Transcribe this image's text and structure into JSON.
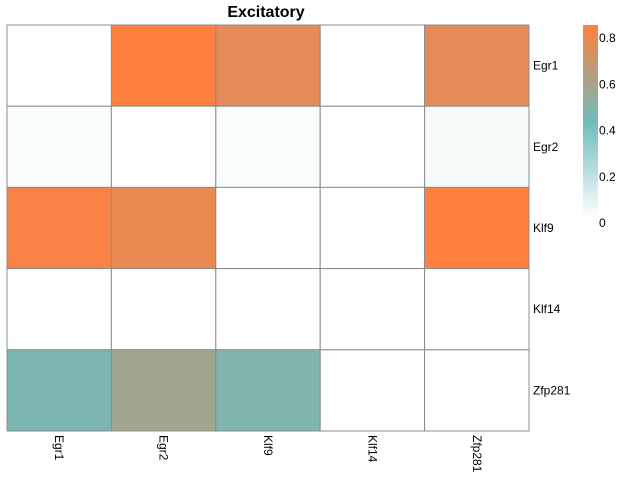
{
  "chart_data": {
    "type": "heatmap",
    "title": "Excitatory",
    "rows": [
      "Egr1",
      "Egr2",
      "Klf9",
      "Klf14",
      "Zfp281"
    ],
    "columns": [
      "Egr1",
      "Egr2",
      "Klf9",
      "Klf14",
      "Zfp281"
    ],
    "values": [
      [
        0.0,
        0.84,
        0.76,
        0.0,
        0.76
      ],
      [
        0.02,
        0.0,
        0.02,
        0.0,
        0.03
      ],
      [
        0.82,
        0.78,
        0.0,
        0.0,
        0.84
      ],
      [
        0.0,
        0.0,
        0.0,
        0.0,
        0.0
      ],
      [
        0.46,
        0.57,
        0.47,
        0.0,
        0.0
      ]
    ],
    "colorbar": {
      "ticks": [
        "0",
        "0.2",
        "0.4",
        "0.6",
        "0.8"
      ],
      "tick_values": [
        0,
        0.2,
        0.4,
        0.6,
        0.8
      ],
      "range": [
        0,
        0.84
      ],
      "colors": [
        "#ffffff",
        "#6fbcbc",
        "#ff7f3f"
      ]
    },
    "grid_color": "#8c8c8c"
  }
}
